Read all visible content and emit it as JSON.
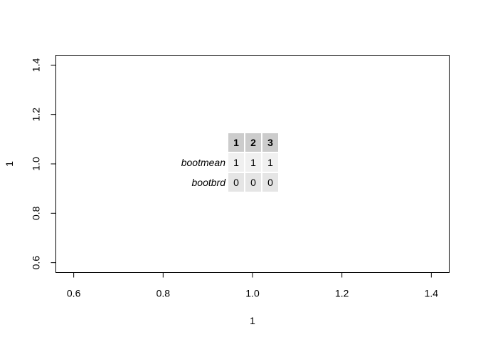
{
  "chart_data": {
    "type": "table",
    "xlabel": "1",
    "ylabel": "1",
    "xlim": [
      0.56,
      1.44
    ],
    "ylim": [
      0.56,
      1.44
    ],
    "x_ticks": [
      0.6,
      0.8,
      1.0,
      1.2,
      1.4
    ],
    "x_tick_labels": [
      "0.6",
      "0.8",
      "1.0",
      "1.2",
      "1.4"
    ],
    "y_ticks": [
      0.6,
      0.8,
      1.0,
      1.2,
      1.4
    ],
    "y_tick_labels": [
      "0.6",
      "0.8",
      "1.0",
      "1.2",
      "1.4"
    ],
    "grid": false,
    "table": {
      "columns": [
        "1",
        "2",
        "3"
      ],
      "rows": [
        {
          "label": "bootmean",
          "values": [
            "1",
            "1",
            "1"
          ]
        },
        {
          "label": "bootbrd",
          "values": [
            "0",
            "0",
            "0"
          ]
        }
      ],
      "header_fill": "#cccccc",
      "row_fills": [
        "#f0f0f0",
        "#e5e5e5"
      ]
    }
  }
}
